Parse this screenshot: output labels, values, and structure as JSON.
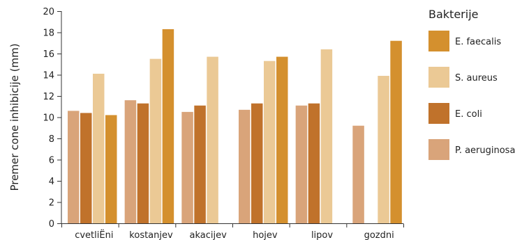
{
  "chart_data": {
    "type": "bar",
    "title": "",
    "xlabel": "",
    "ylabel": "Premer cone inhibicije (mm)",
    "ylim": [
      0,
      20
    ],
    "yticks": [
      0,
      2,
      4,
      6,
      8,
      10,
      12,
      14,
      16,
      18,
      20
    ],
    "categories": [
      "cvetliЁni",
      "kostanjev",
      "akacijev",
      "hojev",
      "lipov",
      "gozdni"
    ],
    "grid": false,
    "legend": {
      "title": "Bakterije",
      "placement": "right"
    },
    "series": [
      {
        "name": "P. aeruginosa",
        "color": "#d9a47a",
        "values": [
          10.6,
          11.6,
          10.5,
          10.7,
          11.1,
          9.2
        ]
      },
      {
        "name": "E. coli",
        "color": "#c0722b",
        "values": [
          10.4,
          11.3,
          11.1,
          11.3,
          11.3,
          0
        ]
      },
      {
        "name": "S. aureus",
        "color": "#ebc995",
        "values": [
          14.1,
          15.5,
          15.7,
          15.3,
          16.4,
          13.9
        ]
      },
      {
        "name": "E. faecalis",
        "color": "#d4902e",
        "values": [
          10.2,
          18.3,
          0,
          15.7,
          0,
          17.2
        ]
      }
    ],
    "legend_order": [
      "E. faecalis",
      "S. aureus",
      "E. coli",
      "P. aeruginosa"
    ]
  }
}
